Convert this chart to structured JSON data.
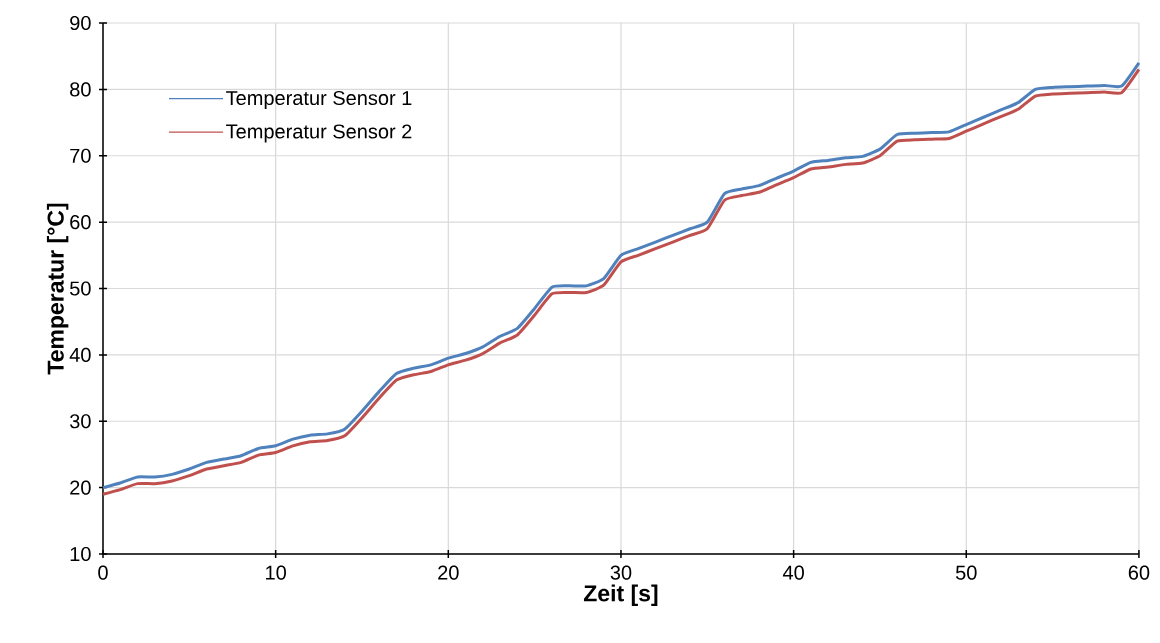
{
  "chart_data": {
    "type": "line",
    "xlabel": "Zeit [s]",
    "ylabel": "Temperatur [°C]",
    "x": [
      0,
      1,
      2,
      3,
      4,
      5,
      6,
      7,
      8,
      9,
      10,
      11,
      12,
      13,
      14,
      15,
      16,
      17,
      18,
      19,
      20,
      21,
      22,
      23,
      24,
      25,
      26,
      27,
      28,
      29,
      30,
      31,
      32,
      33,
      34,
      35,
      36,
      37,
      38,
      39,
      40,
      41,
      42,
      43,
      44,
      45,
      46,
      47,
      48,
      49,
      50,
      51,
      52,
      53,
      54,
      55,
      56,
      57,
      58,
      59,
      60
    ],
    "series": [
      {
        "name": "Temperatur Sensor 1",
        "color": "#4f81bd",
        "values": [
          20,
          20.7,
          21.6,
          21.6,
          22,
          22.8,
          23.8,
          24.3,
          24.8,
          25.9,
          26.3,
          27.3,
          27.9,
          28.1,
          28.8,
          31.5,
          34.5,
          37.2,
          38,
          38.5,
          39.5,
          40.2,
          41.2,
          42.8,
          44,
          47,
          50.2,
          50.4,
          50.4,
          51.5,
          55,
          56,
          57,
          58,
          59,
          60,
          64.3,
          65,
          65.5,
          66.6,
          67.7,
          69,
          69.3,
          69.7,
          69.9,
          71,
          73.2,
          73.4,
          73.5,
          73.6,
          74.7,
          75.8,
          76.9,
          78,
          80,
          80.3,
          80.4,
          80.5,
          80.6,
          80.5,
          84
        ]
      },
      {
        "name": "Temperatur Sensor 2",
        "color": "#c0504d",
        "values": [
          19,
          19.7,
          20.6,
          20.6,
          21,
          21.8,
          22.8,
          23.3,
          23.8,
          24.9,
          25.3,
          26.3,
          26.9,
          27.1,
          27.8,
          30.5,
          33.5,
          36.2,
          37,
          37.5,
          38.5,
          39.2,
          40.2,
          41.8,
          43,
          46,
          49.2,
          49.4,
          49.4,
          50.5,
          54,
          55,
          56,
          57,
          58,
          59,
          63.3,
          64,
          64.5,
          65.6,
          66.7,
          68,
          68.3,
          68.7,
          68.9,
          70,
          72.2,
          72.4,
          72.5,
          72.6,
          73.7,
          74.8,
          75.9,
          77,
          79,
          79.3,
          79.4,
          79.5,
          79.6,
          79.5,
          83
        ]
      }
    ],
    "xlim": [
      0,
      60
    ],
    "xticks": [
      0,
      10,
      20,
      30,
      40,
      50,
      60
    ],
    "ylim": [
      10,
      90
    ],
    "yticks": [
      10,
      20,
      30,
      40,
      50,
      60,
      70,
      80,
      90
    ],
    "grid": true,
    "legend": "top left",
    "marker": "none",
    "line_style": "solid"
  }
}
